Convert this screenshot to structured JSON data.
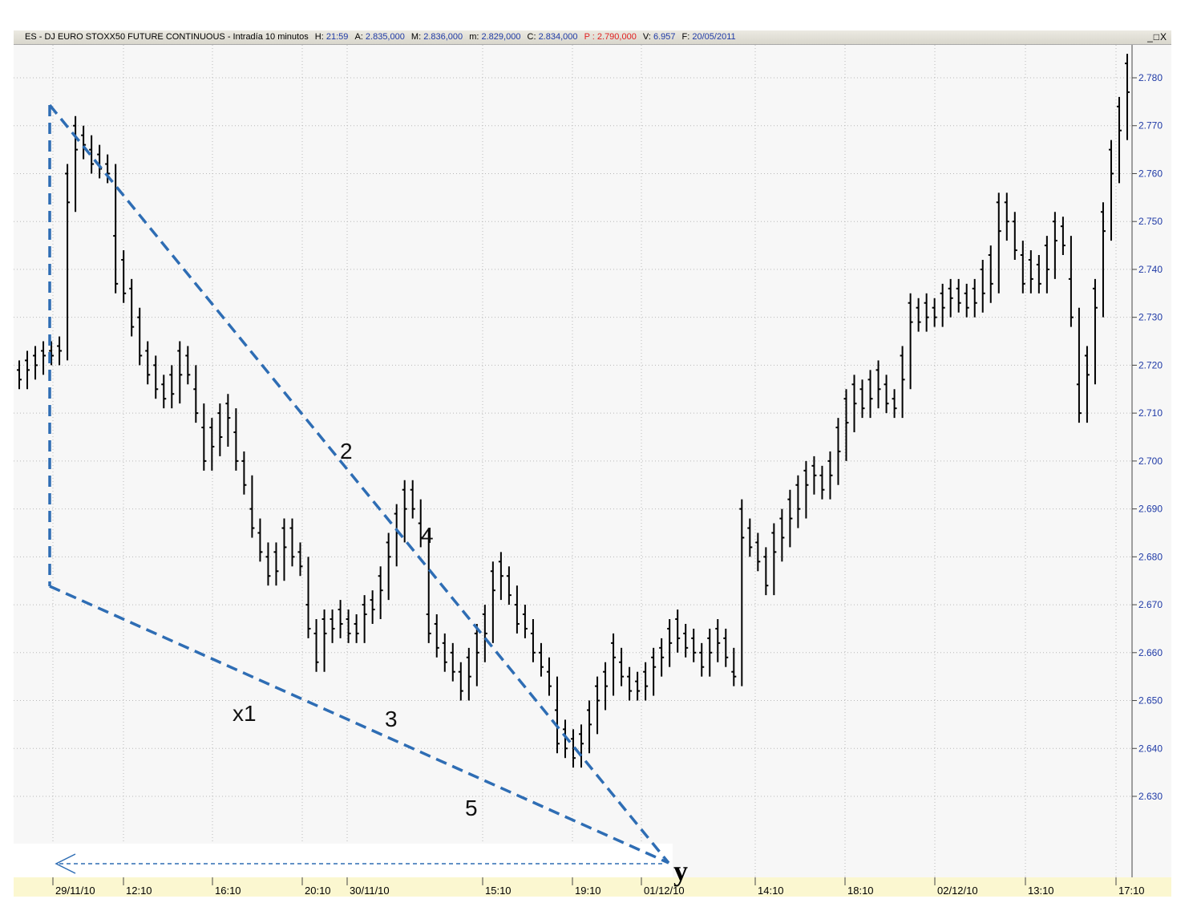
{
  "title_bar": {
    "symbol": "ES - DJ EURO STOXX50 FUTURE CONTINUOUS - Intradía 10 minutos",
    "h_label": "H:",
    "h_value": "21:59",
    "a_label": "A:",
    "a_value": "2.835,000",
    "m_label": "M:",
    "m_value": "2.836,000",
    "min_label": "m:",
    "min_value": "2.829,000",
    "c_label": "C:",
    "c_value": "2.834,000",
    "p_label": "P :",
    "p_value": "2.790,000",
    "vol_label": "V:",
    "vol_value": "6.957",
    "f_label": "F:",
    "f_value": "20/05/2011",
    "window_buttons": "_□X"
  },
  "colors": {
    "bars": "#000000",
    "pattern_lines": "#2e6db4",
    "price_labels": "#1f3aa6",
    "time_strip": "#fbf7d0",
    "grid": "#b8b8b8"
  },
  "chart_data": {
    "type": "ohlc-bar",
    "interval": "10 minutos",
    "y_ticks": [
      "2.630",
      "2.640",
      "2.650",
      "2.660",
      "2.670",
      "2.680",
      "2.690",
      "2.700",
      "2.710",
      "2.720",
      "2.730",
      "2.740",
      "2.750",
      "2.760",
      "2.770",
      "2.780"
    ],
    "ylim": [
      2622,
      2788
    ],
    "x_ticks": [
      "29/11/10",
      "12:10",
      "16:10",
      "20:10",
      "30/11/10",
      "15:10",
      "19:10",
      "01/12/10",
      "14:10",
      "18:10",
      "02/12/10",
      "13:10",
      "17:10"
    ],
    "grid": true,
    "bars_approx": [
      [
        2719,
        2717
      ],
      [
        2721,
        2719
      ],
      [
        2722,
        2720
      ],
      [
        2723,
        2722
      ],
      [
        2723,
        2722
      ],
      [
        2724,
        2723
      ],
      [
        2760,
        2754
      ],
      [
        2770,
        2765
      ],
      [
        2768,
        2766
      ],
      [
        2765,
        2762
      ],
      [
        2764,
        2761
      ],
      [
        2762,
        2760
      ],
      [
        2747,
        2737
      ],
      [
        2742,
        2735
      ],
      [
        2736,
        2728
      ],
      [
        2730,
        2722
      ],
      [
        2723,
        2718
      ],
      [
        2720,
        2715
      ],
      [
        2716,
        2713
      ],
      [
        2718,
        2714
      ],
      [
        2723,
        2718
      ],
      [
        2722,
        2718
      ],
      [
        2715,
        2710
      ],
      [
        2707,
        2700
      ],
      [
        2707,
        2703
      ],
      [
        2710,
        2705
      ],
      [
        2712,
        2709
      ],
      [
        2706,
        2700
      ],
      [
        2700,
        2695
      ],
      [
        2690,
        2686
      ],
      [
        2685,
        2681
      ],
      [
        2680,
        2676
      ],
      [
        2681,
        2677
      ],
      [
        2686,
        2682
      ],
      [
        2686,
        2680
      ],
      [
        2681,
        2678
      ],
      [
        2670,
        2665
      ],
      [
        2664,
        2658
      ],
      [
        2667,
        2664
      ],
      [
        2667,
        2665
      ],
      [
        2669,
        2666
      ],
      [
        2667,
        2664
      ],
      [
        2666,
        2664
      ],
      [
        2670,
        2668
      ],
      [
        2671,
        2669
      ],
      [
        2676,
        2673
      ],
      [
        2683,
        2680
      ],
      [
        2689,
        2685
      ],
      [
        2694,
        2690
      ],
      [
        2694,
        2690
      ],
      [
        2687,
        2684
      ],
      [
        2668,
        2664
      ],
      [
        2666,
        2661
      ],
      [
        2662,
        2658
      ],
      [
        2660,
        2656
      ],
      [
        2656,
        2652
      ],
      [
        2659,
        2655
      ],
      [
        2664,
        2660
      ],
      [
        2668,
        2664
      ],
      [
        2677,
        2673
      ],
      [
        2679,
        2676
      ],
      [
        2676,
        2672
      ],
      [
        2670,
        2666
      ],
      [
        2668,
        2665
      ],
      [
        2664,
        2660
      ],
      [
        2660,
        2657
      ],
      [
        2656,
        2653
      ],
      [
        2648,
        2641
      ],
      [
        2644,
        2640
      ],
      [
        2642,
        2638
      ],
      [
        2643,
        2641
      ],
      [
        2648,
        2645
      ],
      [
        2653,
        2650
      ],
      [
        2656,
        2653
      ],
      [
        2662,
        2659
      ],
      [
        2658,
        2655
      ],
      [
        2655,
        2652
      ],
      [
        2654,
        2652
      ],
      [
        2656,
        2653
      ],
      [
        2659,
        2657
      ],
      [
        2661,
        2659
      ],
      [
        2665,
        2662
      ],
      [
        2667,
        2663
      ],
      [
        2664,
        2661
      ],
      [
        2663,
        2660
      ],
      [
        2660,
        2657
      ],
      [
        2663,
        2660
      ],
      [
        2665,
        2662
      ],
      [
        2663,
        2659
      ],
      [
        2656,
        2655
      ],
      [
        2690,
        2684
      ],
      [
        2686,
        2682
      ],
      [
        2683,
        2679
      ],
      [
        2680,
        2674
      ],
      [
        2685,
        2681
      ],
      [
        2688,
        2684
      ],
      [
        2692,
        2688
      ],
      [
        2695,
        2690
      ],
      [
        2698,
        2695
      ],
      [
        2699,
        2697
      ],
      [
        2697,
        2694
      ],
      [
        2700,
        2697
      ],
      [
        2707,
        2702
      ],
      [
        2713,
        2708
      ],
      [
        2716,
        2712
      ],
      [
        2715,
        2711
      ],
      [
        2717,
        2713
      ],
      [
        2719,
        2715
      ],
      [
        2716,
        2712
      ],
      [
        2713,
        2711
      ],
      [
        2722,
        2717
      ],
      [
        2733,
        2729
      ],
      [
        2732,
        2729
      ],
      [
        2733,
        2730
      ],
      [
        2732,
        2730
      ],
      [
        2735,
        2732
      ],
      [
        2736,
        2734
      ],
      [
        2736,
        2733
      ],
      [
        2735,
        2732
      ],
      [
        2736,
        2733
      ],
      [
        2740,
        2735
      ],
      [
        2743,
        2737
      ],
      [
        2754,
        2748
      ],
      [
        2754,
        2750
      ],
      [
        2750,
        2744
      ],
      [
        2743,
        2737
      ],
      [
        2742,
        2738
      ],
      [
        2741,
        2737
      ],
      [
        2745,
        2740
      ],
      [
        2750,
        2746
      ],
      [
        2749,
        2745
      ],
      [
        2738,
        2730
      ],
      [
        2716,
        2710
      ],
      [
        2722,
        2718
      ],
      [
        2736,
        2732
      ],
      [
        2752,
        2748
      ],
      [
        2765,
        2760
      ],
      [
        2774,
        2769
      ],
      [
        2783,
        2777
      ]
    ]
  },
  "annotations": {
    "wave_labels": [
      "x1",
      "2",
      "3",
      "4",
      "5"
    ],
    "target_label": "y"
  }
}
